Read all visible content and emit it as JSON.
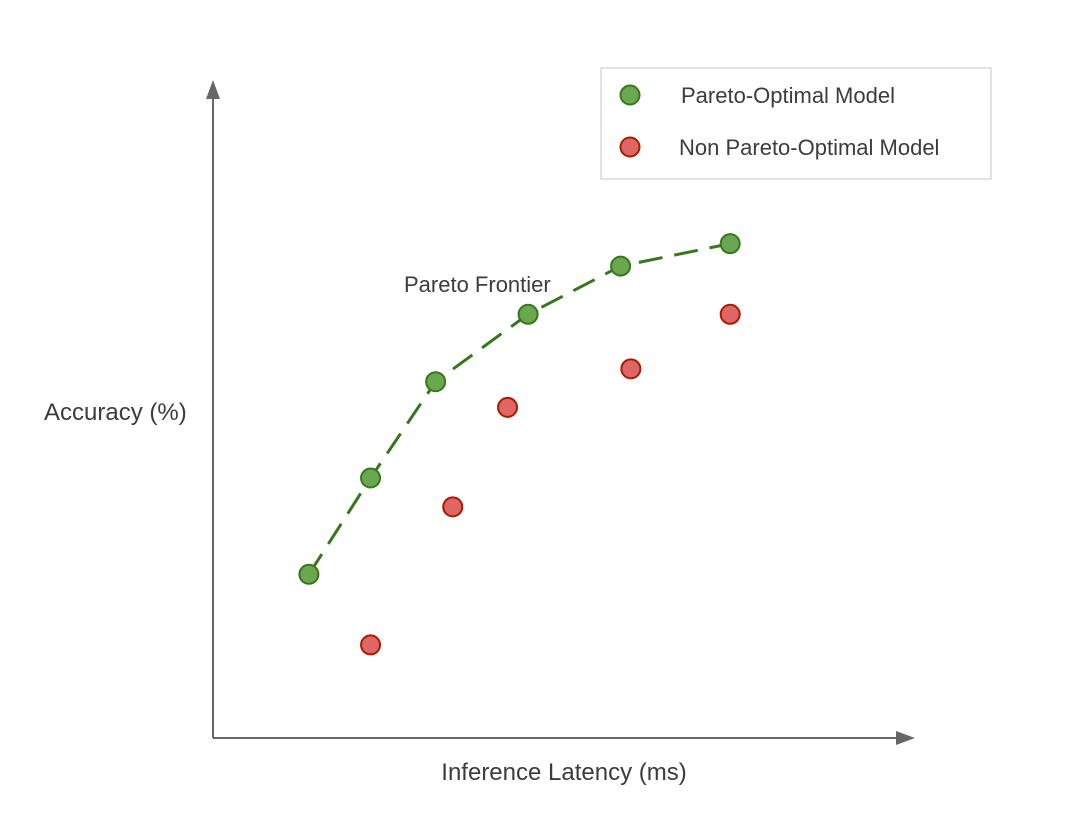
{
  "colors": {
    "pareto_fill": "#6aa84f",
    "pareto_stroke": "#38761d",
    "non_pareto_fill": "#e06666",
    "non_pareto_stroke": "#a61c00",
    "frontier_line": "#38761d"
  },
  "chart_data": {
    "type": "scatter",
    "title": "",
    "xlabel": "Inference Latency (ms)",
    "ylabel": "Accuracy (%)",
    "xlim": [
      0,
      100
    ],
    "ylim": [
      0,
      100
    ],
    "grid": false,
    "legend_position": "top-right",
    "annotation": "Pareto Frontier",
    "series": [
      {
        "name": "Pareto-Optimal Model",
        "connected": true,
        "line_style": "dashed",
        "points": [
          {
            "x": 14,
            "y": 25.5
          },
          {
            "x": 23,
            "y": 40.5
          },
          {
            "x": 32.5,
            "y": 55.5
          },
          {
            "x": 46,
            "y": 66
          },
          {
            "x": 59.5,
            "y": 73.5
          },
          {
            "x": 75.5,
            "y": 77
          }
        ]
      },
      {
        "name": "Non Pareto-Optimal Model",
        "connected": false,
        "points": [
          {
            "x": 23,
            "y": 14.5
          },
          {
            "x": 35,
            "y": 36
          },
          {
            "x": 43,
            "y": 51.5
          },
          {
            "x": 61,
            "y": 57.5
          },
          {
            "x": 75.5,
            "y": 66
          }
        ]
      }
    ]
  }
}
